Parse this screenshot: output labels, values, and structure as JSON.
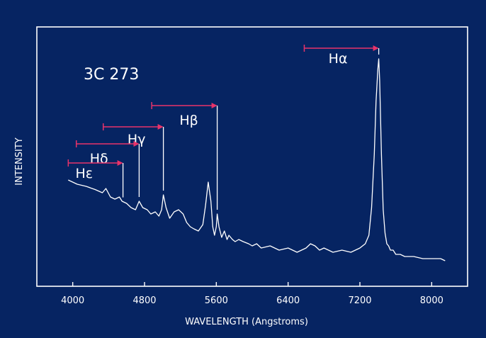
{
  "colors": {
    "background": "#062462",
    "foreground": "#ffffff",
    "arrow": "#e8336a"
  },
  "chart_data": {
    "type": "line",
    "title": "3C 273",
    "xlabel": "WAVELENGTH (Angstroms)",
    "ylabel": "INTENSITY",
    "xlim": [
      3600,
      8400
    ],
    "ylim": [
      0,
      1
    ],
    "x_ticks": [
      4000,
      4800,
      5600,
      6400,
      7200,
      8000
    ],
    "x_tick_labels": [
      "4000",
      "4800",
      "5600",
      "6400",
      "7200",
      "8000"
    ],
    "grid": false,
    "series": [
      {
        "values_x": [
          3950,
          4050,
          4150,
          4250,
          4330,
          4370,
          4420,
          4470,
          4520,
          4550,
          4600,
          4650,
          4700,
          4740,
          4780,
          4830,
          4870,
          4920,
          4960,
          4990,
          5010,
          5040,
          5080,
          5130,
          5180,
          5230,
          5270,
          5310,
          5350,
          5400,
          5450,
          5480,
          5510,
          5540,
          5560,
          5580,
          5600,
          5610,
          5630,
          5660,
          5690,
          5720,
          5740,
          5760,
          5780,
          5810,
          5850,
          5900,
          5960,
          6000,
          6050,
          6100,
          6200,
          6300,
          6400,
          6500,
          6600,
          6650,
          6700,
          6750,
          6800,
          6900,
          7000,
          7100,
          7200,
          7260,
          7300,
          7330,
          7360,
          7380,
          7400,
          7410,
          7420,
          7440,
          7460,
          7480,
          7500,
          7520,
          7540,
          7570,
          7600,
          7650,
          7700,
          7800,
          7900,
          8000,
          8100,
          8150
        ],
        "values_y": [
          0.38,
          0.36,
          0.35,
          0.335,
          0.32,
          0.34,
          0.3,
          0.29,
          0.3,
          0.28,
          0.27,
          0.25,
          0.24,
          0.28,
          0.25,
          0.24,
          0.22,
          0.23,
          0.21,
          0.24,
          0.31,
          0.25,
          0.2,
          0.23,
          0.24,
          0.22,
          0.18,
          0.16,
          0.15,
          0.14,
          0.17,
          0.26,
          0.37,
          0.28,
          0.16,
          0.12,
          0.16,
          0.22,
          0.16,
          0.11,
          0.14,
          0.1,
          0.12,
          0.11,
          0.1,
          0.09,
          0.1,
          0.09,
          0.08,
          0.07,
          0.08,
          0.06,
          0.07,
          0.05,
          0.06,
          0.04,
          0.06,
          0.08,
          0.07,
          0.05,
          0.06,
          0.04,
          0.05,
          0.04,
          0.06,
          0.08,
          0.12,
          0.25,
          0.5,
          0.75,
          0.9,
          0.95,
          0.85,
          0.5,
          0.24,
          0.13,
          0.08,
          0.07,
          0.05,
          0.05,
          0.03,
          0.03,
          0.02,
          0.02,
          0.01,
          0.01,
          0.01,
          0.0
        ]
      }
    ],
    "annotations": [
      {
        "label": "Hα",
        "line_x": 7410,
        "line_top": 0.96,
        "arrow_from_x": 6580,
        "arrow_y": 1.0,
        "label_x": 6850,
        "label_y": 0.93
      },
      {
        "label": "Hβ",
        "line_x": 5610,
        "line_top": 0.7,
        "arrow_from_x": 4880,
        "arrow_y": 0.73,
        "label_x": 5190,
        "label_y": 0.64
      },
      {
        "label": "Hγ",
        "line_x": 5010,
        "line_top": 0.61,
        "arrow_from_x": 4340,
        "arrow_y": 0.63,
        "label_x": 4610,
        "label_y": 0.55
      },
      {
        "label": "Hδ",
        "line_x": 4740,
        "line_top": 0.53,
        "arrow_from_x": 4040,
        "arrow_y": 0.55,
        "label_x": 4190,
        "label_y": 0.46
      },
      {
        "label": "Hε",
        "line_x": 4560,
        "line_top": 0.44,
        "arrow_from_x": 3950,
        "arrow_y": 0.46,
        "label_x": 4030,
        "label_y": 0.39
      }
    ]
  }
}
